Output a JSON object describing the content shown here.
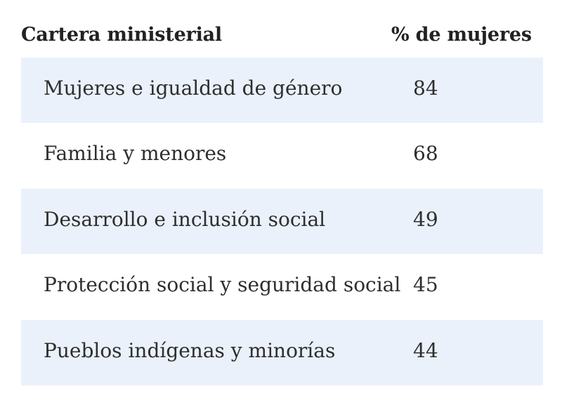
{
  "table": {
    "headers": {
      "ministry": "Cartera ministerial",
      "percent_women": "% de mujeres"
    },
    "rows": [
      {
        "ministry": "Mujeres e igualdad de género",
        "percent_women": "84"
      },
      {
        "ministry": "Familia y menores",
        "percent_women": "68"
      },
      {
        "ministry": "Desarrollo e inclusión social",
        "percent_women": "49"
      },
      {
        "ministry": "Protección social y seguridad social",
        "percent_women": "45"
      },
      {
        "ministry": "Pueblos indígenas y minorías",
        "percent_women": "44"
      }
    ],
    "row_shading_color": "#eaf1fb"
  }
}
